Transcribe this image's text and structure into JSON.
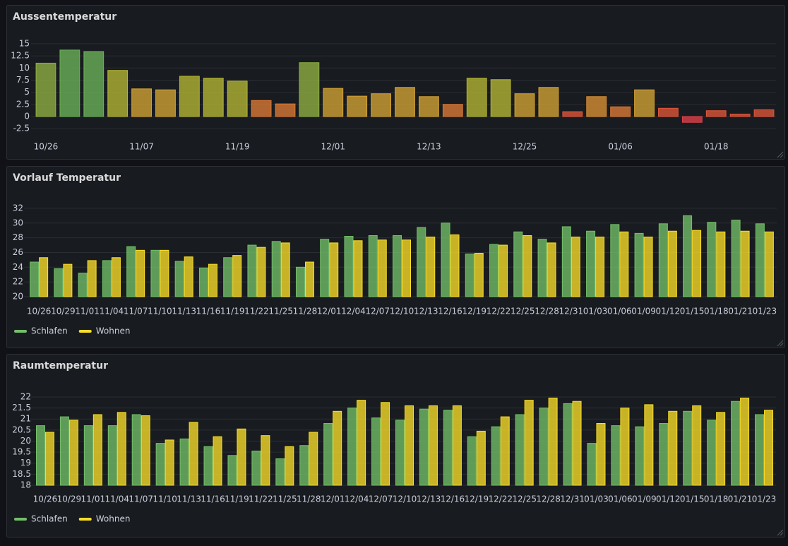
{
  "chart_data": [
    {
      "type": "bar",
      "title": "Aussentemperatur",
      "categories": [
        "10/26",
        null,
        null,
        null,
        "11/07",
        null,
        null,
        null,
        "11/19",
        null,
        null,
        null,
        "12/01",
        null,
        null,
        null,
        "12/13",
        null,
        null,
        null,
        "12/25",
        null,
        null,
        null,
        "01/06",
        null,
        null,
        null,
        "01/18",
        null,
        null
      ],
      "values": [
        11.0,
        13.7,
        13.4,
        9.5,
        5.7,
        5.5,
        8.3,
        7.9,
        7.3,
        3.3,
        2.6,
        11.1,
        5.8,
        4.2,
        4.7,
        6.0,
        4.1,
        2.5,
        7.9,
        7.6,
        4.7,
        6.0,
        1.0,
        4.1,
        2.0,
        5.5,
        1.7,
        -1.2,
        1.2,
        0.5,
        1.4
      ],
      "colors": [
        "#8fb043",
        "#6cb35a",
        "#6cb35a",
        "#b5b636",
        "#d4a334",
        "#d4a334",
        "#b5b636",
        "#b5b636",
        "#b5b636",
        "#dc7a36",
        "#dc7a36",
        "#8fb043",
        "#d4a334",
        "#d4a334",
        "#d4a334",
        "#d4a334",
        "#d4a334",
        "#dc7a36",
        "#b5b636",
        "#b5b636",
        "#d4a334",
        "#d4a334",
        "#e0563a",
        "#d99034",
        "#dc7a36",
        "#d4a334",
        "#e0563a",
        "#e0404a",
        "#e0563a",
        "#e0563a",
        "#e0563a"
      ],
      "ylim": [
        -3.5,
        15.5
      ],
      "yticks": [
        -2.5,
        0,
        2.5,
        5,
        7.5,
        10,
        12.5,
        15
      ],
      "grid": true
    },
    {
      "type": "bar",
      "title": "Vorlauf Temperatur",
      "categories": [
        "10/26",
        "10/29",
        "11/01",
        "11/04",
        "11/07",
        "11/10",
        "11/13",
        "11/16",
        "11/19",
        "11/22",
        "11/25",
        "11/28",
        "12/01",
        "12/04",
        "12/07",
        "12/10",
        "12/13",
        "12/16",
        "12/19",
        "12/22",
        "12/25",
        "12/28",
        "12/31",
        "01/03",
        "01/06",
        "01/09",
        "01/12",
        "01/15",
        "01/18",
        "01/21",
        "01/23"
      ],
      "series": [
        {
          "name": "Schlafen",
          "color": "#73bf69",
          "values": [
            24.7,
            23.8,
            23.2,
            24.9,
            26.8,
            26.3,
            24.8,
            23.9,
            25.3,
            27.0,
            27.5,
            24.0,
            27.8,
            28.2,
            28.3,
            28.3,
            29.4,
            30.0,
            25.8,
            27.1,
            28.8,
            27.8,
            29.5,
            28.9,
            29.8,
            28.6,
            29.9,
            31.0,
            30.1,
            30.4,
            29.9
          ]
        },
        {
          "name": "Wohnen",
          "color": "#fade2a",
          "values": [
            25.3,
            24.4,
            24.9,
            25.3,
            26.3,
            26.3,
            25.4,
            24.4,
            25.6,
            26.7,
            27.3,
            24.7,
            27.3,
            27.6,
            27.7,
            27.7,
            28.1,
            28.4,
            25.9,
            27.0,
            28.3,
            27.3,
            28.1,
            28.1,
            28.8,
            28.1,
            28.9,
            29.0,
            28.8,
            28.9,
            28.8
          ]
        }
      ],
      "ylim": [
        20,
        33
      ],
      "yticks": [
        20,
        22,
        24,
        26,
        28,
        30,
        32
      ],
      "grid": true,
      "legend": "bottom"
    },
    {
      "type": "bar",
      "title": "Raumtemperatur",
      "categories": [
        "10/26",
        "10/29",
        "11/01",
        "11/04",
        "11/07",
        "11/10",
        "11/13",
        "11/16",
        "11/19",
        "11/22",
        "11/25",
        "11/28",
        "12/01",
        "12/04",
        "12/07",
        "12/10",
        "12/13",
        "12/16",
        "12/19",
        "12/22",
        "12/25",
        "12/28",
        "12/31",
        "01/03",
        "01/06",
        "01/09",
        "01/12",
        "01/15",
        "01/18",
        "01/21",
        "01/23"
      ],
      "series": [
        {
          "name": "Schlafen",
          "color": "#73bf69",
          "values": [
            20.7,
            21.1,
            20.7,
            20.7,
            21.2,
            19.9,
            20.1,
            19.75,
            19.35,
            19.55,
            19.2,
            19.8,
            20.8,
            21.5,
            21.05,
            20.95,
            21.45,
            21.4,
            20.2,
            20.65,
            21.2,
            21.5,
            21.7,
            19.9,
            20.7,
            20.65,
            20.8,
            21.35,
            20.95,
            21.8,
            21.2
          ]
        },
        {
          "name": "Wohnen",
          "color": "#fade2a",
          "values": [
            20.4,
            20.95,
            21.2,
            21.3,
            21.15,
            20.05,
            20.85,
            20.2,
            20.55,
            20.25,
            19.75,
            20.4,
            21.35,
            21.85,
            21.75,
            21.6,
            21.6,
            21.6,
            20.45,
            21.1,
            21.85,
            21.95,
            21.8,
            20.8,
            21.5,
            21.65,
            21.35,
            21.6,
            21.3,
            21.95,
            21.4
          ]
        }
      ],
      "ylim": [
        18,
        22.3
      ],
      "yticks": [
        18,
        18.5,
        19,
        19.5,
        20,
        20.5,
        21,
        21.5,
        22
      ],
      "grid": true,
      "legend": "bottom"
    }
  ]
}
